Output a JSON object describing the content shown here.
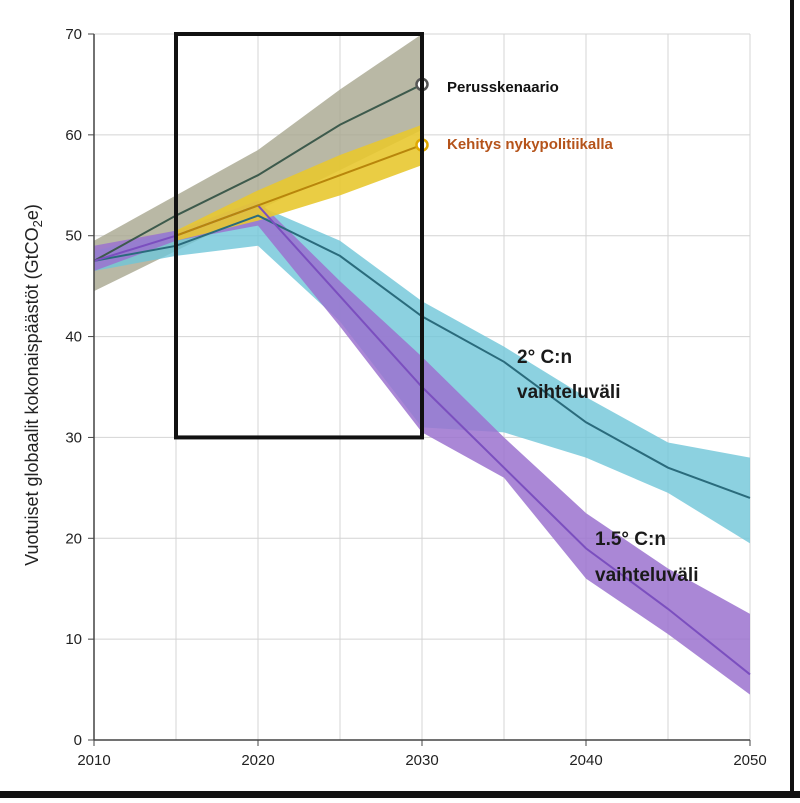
{
  "chart_data": {
    "type": "line",
    "ylabel": "Vuotuiset globaalit kokonaispäästöt (GtCO2e)",
    "xlim": [
      2010,
      2050
    ],
    "ylim": [
      0,
      70
    ],
    "x_ticks": [
      "2010",
      "2020",
      "2030",
      "2040",
      "2050"
    ],
    "y_ticks": [
      "0",
      "10",
      "20",
      "30",
      "40",
      "50",
      "60",
      "70"
    ],
    "grid": true,
    "highlight_box": {
      "x_range": [
        2015,
        2030
      ],
      "y_range": [
        30,
        70
      ]
    },
    "series": [
      {
        "name": "Perusskenaario",
        "color": "#3d5a4c",
        "band_color": "#a8a68f",
        "x": [
          2010,
          2015,
          2020,
          2025,
          2030
        ],
        "values": [
          47.5,
          52,
          56,
          61,
          65
        ],
        "lower": [
          44.5,
          48.5,
          52.5,
          56.5,
          60.5
        ],
        "upper": [
          49.5,
          54,
          58.5,
          64.5,
          70
        ]
      },
      {
        "name": "Kehitys nykypolitiikalla",
        "color": "#b8860b",
        "band_color": "#e8c830",
        "x": [
          2015,
          2020,
          2025,
          2030
        ],
        "values": [
          50,
          53,
          56,
          59
        ],
        "lower": [
          49.5,
          51.5,
          54,
          57
        ],
        "upper": [
          50.5,
          54.5,
          58,
          61
        ]
      },
      {
        "name": "2° C:n vaihteluväli",
        "color": "#2a6b7c",
        "band_color": "#6fc5d8",
        "x": [
          2010,
          2015,
          2020,
          2025,
          2030,
          2035,
          2040,
          2045,
          2050
        ],
        "values": [
          47.5,
          49,
          52,
          48,
          42,
          37.5,
          31.5,
          27,
          24
        ],
        "lower": [
          46.5,
          48,
          49,
          41.5,
          31,
          30.5,
          28,
          24.5,
          19.5
        ],
        "upper": [
          48.5,
          50.5,
          53,
          49.5,
          43.5,
          39,
          34,
          29.5,
          28
        ]
      },
      {
        "name": "1.5° C:n vaihteluväli",
        "color": "#7b4fbf",
        "band_color": "#9b72cf",
        "x": [
          2010,
          2015,
          2020,
          2025,
          2030,
          2035,
          2040,
          2045,
          2050
        ],
        "values": [
          47.5,
          50,
          53,
          44,
          35,
          27,
          19,
          13,
          6.5
        ],
        "lower": [
          46.5,
          49.5,
          51,
          41,
          30.5,
          26,
          16,
          10.5,
          4.5
        ],
        "upper": [
          49,
          50.5,
          53.5,
          45.5,
          38,
          30,
          22.5,
          17,
          12.5
        ]
      }
    ],
    "annotations": {
      "baseline_label": "Perusskenaario",
      "current_policy_label": "Kehitys nykypolitiikalla",
      "range_2c_line1": "2° C:n",
      "range_2c_line2": "vaihteluväli",
      "range_15c_line1": "1.5° C:n",
      "range_15c_line2": "vaihteluväli",
      "baseline_label_color": "#111111",
      "current_policy_label_color": "#b5531a"
    }
  }
}
